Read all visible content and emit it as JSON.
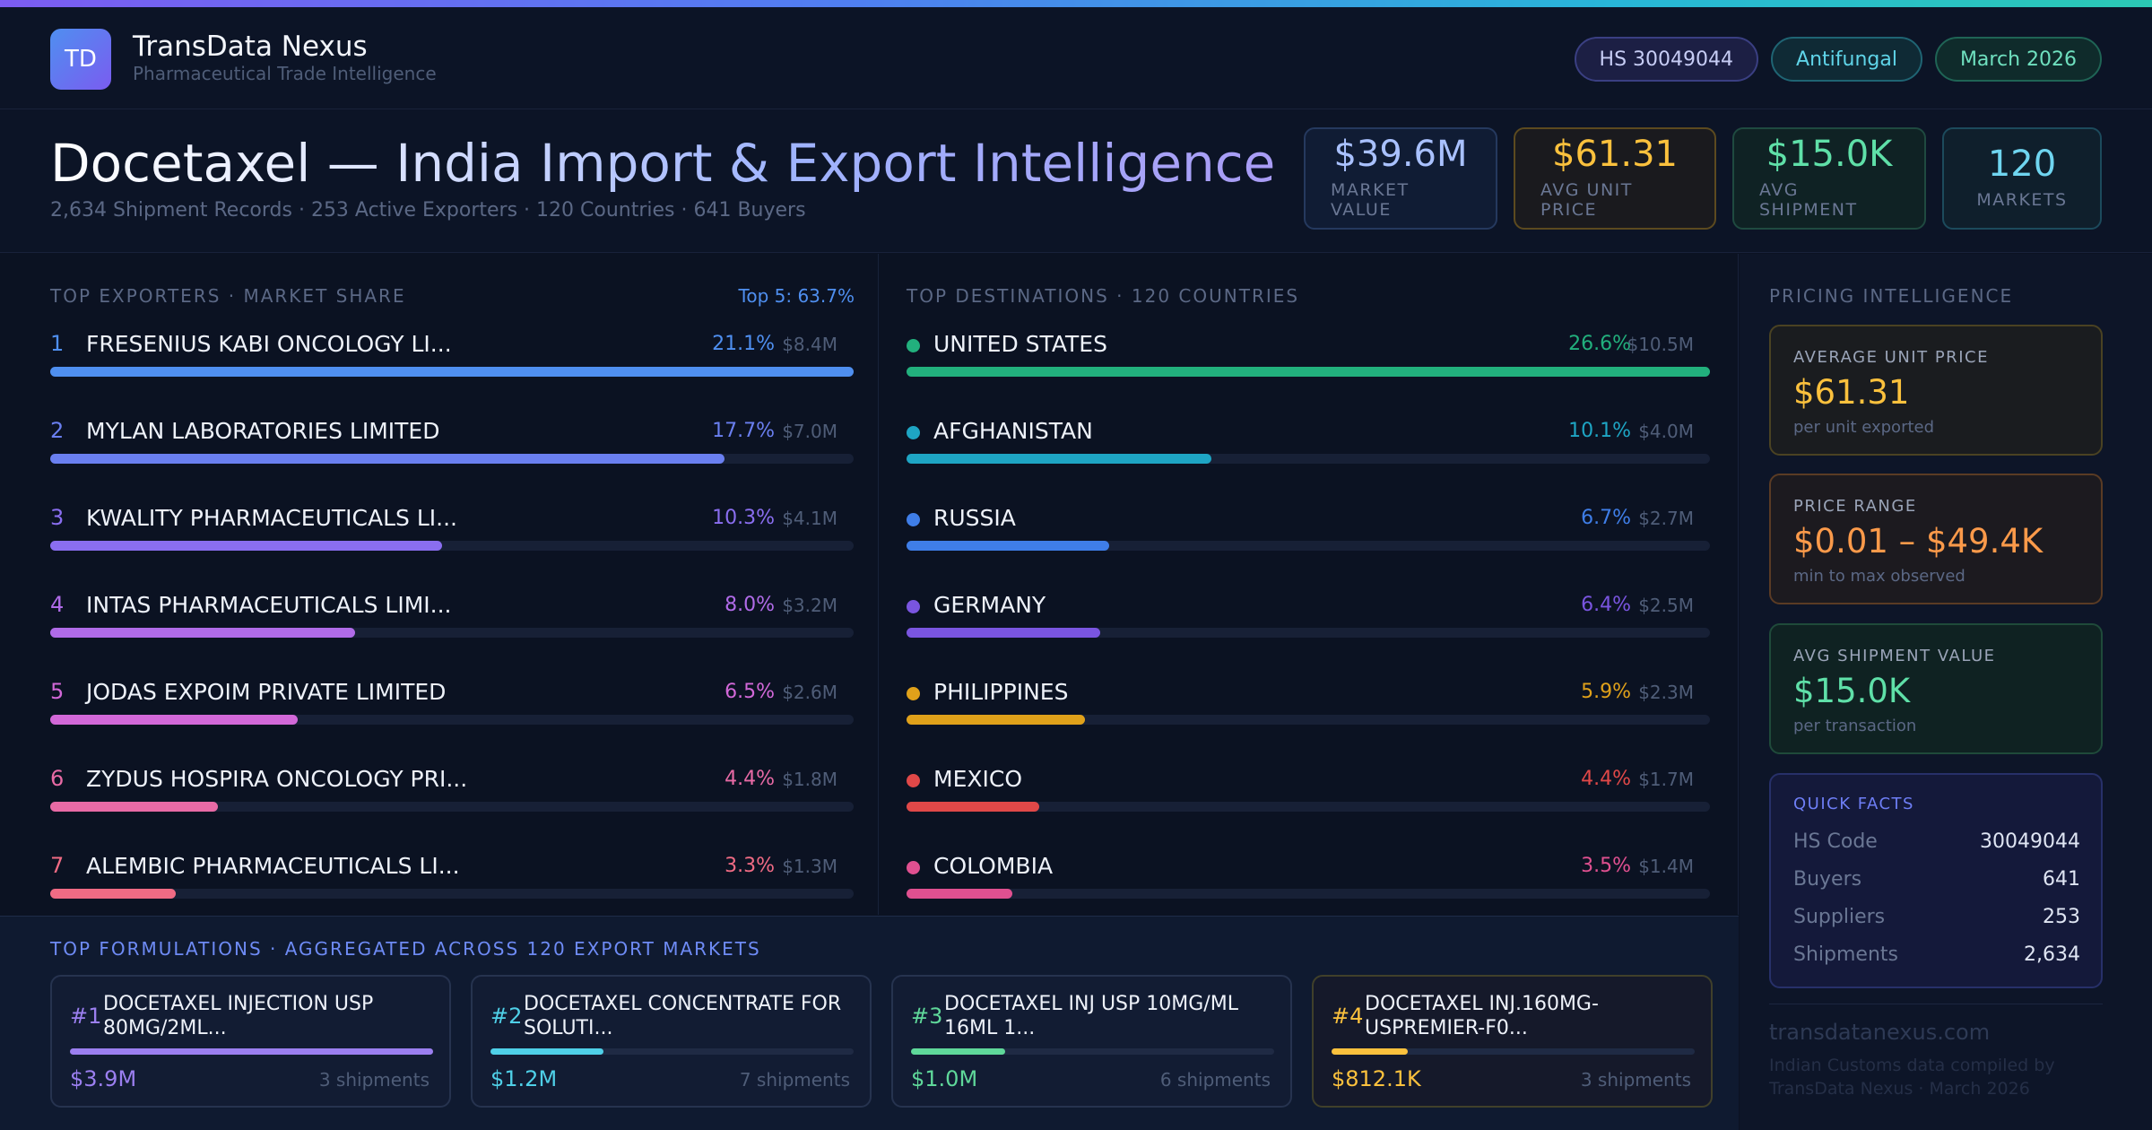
{
  "brand": {
    "logo_text": "TD",
    "name": "TransData Nexus",
    "subtitle": "Pharmaceutical Trade Intelligence"
  },
  "pills": {
    "hs": "HS 30049044",
    "category": "Antifungal",
    "date": "March 2026"
  },
  "title": {
    "main": "Docetaxel — India Import & Export Intelligence",
    "subtitle": "2,634 Shipment Records · 253 Active Exporters · 120 Countries · 641 Buyers"
  },
  "kpis": [
    {
      "value": "$39.6M",
      "label": "MARKET VALUE"
    },
    {
      "value": "$61.31",
      "label": "AVG UNIT PRICE"
    },
    {
      "value": "$15.0K",
      "label": "AVG SHIPMENT"
    },
    {
      "value": "120",
      "label": "MARKETS"
    }
  ],
  "exporters": {
    "label": "TOP EXPORTERS · MARKET SHARE",
    "top5": "Top 5: 63.7%",
    "items": [
      {
        "rank": "1",
        "name": "FRESENIUS KABI ONCOLOGY LI...",
        "pct": "21.1%",
        "amount": "$8.4M",
        "share": 21.1,
        "color": "#4f8ff0"
      },
      {
        "rank": "2",
        "name": "MYLAN LABORATORIES LIMITED",
        "pct": "17.7%",
        "amount": "$7.0M",
        "share": 17.7,
        "color": "#6a7ff0"
      },
      {
        "rank": "3",
        "name": "KWALITY PHARMACEUTICALS LI...",
        "pct": "10.3%",
        "amount": "$4.1M",
        "share": 10.3,
        "color": "#8a6ef0"
      },
      {
        "rank": "4",
        "name": "INTAS PHARMACEUTICALS LIMI...",
        "pct": "8.0%",
        "amount": "$3.2M",
        "share": 8.0,
        "color": "#b06be8"
      },
      {
        "rank": "5",
        "name": "JODAS EXPOIM PRIVATE LIMITED",
        "pct": "6.5%",
        "amount": "$2.6M",
        "share": 6.5,
        "color": "#d268d8"
      },
      {
        "rank": "6",
        "name": "ZYDUS HOSPIRA ONCOLOGY PRI...",
        "pct": "4.4%",
        "amount": "$1.8M",
        "share": 4.4,
        "color": "#e86aa5"
      },
      {
        "rank": "7",
        "name": "ALEMBIC PHARMACEUTICALS LI...",
        "pct": "3.3%",
        "amount": "$1.3M",
        "share": 3.3,
        "color": "#f06b84"
      }
    ]
  },
  "destinations": {
    "label": "TOP DESTINATIONS · 120 COUNTRIES",
    "items": [
      {
        "name": "UNITED STATES",
        "pct": "26.6%",
        "amount": "$10.5M",
        "share": 26.6,
        "color": "#22b07d"
      },
      {
        "name": "AFGHANISTAN",
        "pct": "10.1%",
        "amount": "$4.0M",
        "share": 10.1,
        "color": "#1ea5c4"
      },
      {
        "name": "RUSSIA",
        "pct": "6.7%",
        "amount": "$2.7M",
        "share": 6.7,
        "color": "#3f7ee8"
      },
      {
        "name": "GERMANY",
        "pct": "6.4%",
        "amount": "$2.5M",
        "share": 6.4,
        "color": "#7a55e0"
      },
      {
        "name": "PHILIPPINES",
        "pct": "5.9%",
        "amount": "$2.3M",
        "share": 5.9,
        "color": "#e0a11a"
      },
      {
        "name": "MEXICO",
        "pct": "4.4%",
        "amount": "$1.7M",
        "share": 4.4,
        "color": "#e04848"
      },
      {
        "name": "COLOMBIA",
        "pct": "3.5%",
        "amount": "$1.4M",
        "share": 3.5,
        "color": "#e05090"
      }
    ]
  },
  "formulations": {
    "label": "TOP FORMULATIONS · AGGREGATED ACROSS 120 EXPORT MARKETS",
    "items": [
      {
        "rank": "#1",
        "name": "DOCETAXEL INJECTION USP 80MG/2ML...",
        "value": "$3.9M",
        "shipments": "3 shipments",
        "share": 100,
        "color": "#9b7ff0"
      },
      {
        "rank": "#2",
        "name": "DOCETAXEL CONCENTRATE FOR SOLUTI...",
        "value": "$1.2M",
        "shipments": "7 shipments",
        "share": 31,
        "color": "#4fd0e8"
      },
      {
        "rank": "#3",
        "name": "DOCETAXEL INJ USP 10MG/ML 16ML 1...",
        "value": "$1.0M",
        "shipments": "6 shipments",
        "share": 26,
        "color": "#5fd89a"
      },
      {
        "rank": "#4",
        "name": "DOCETAXEL INJ.160MG-USPREMIER-F0...",
        "value": "$812.1K",
        "shipments": "3 shipments",
        "share": 21,
        "color": "#fbc13d"
      }
    ]
  },
  "pricing": {
    "label": "PRICING INTELLIGENCE",
    "avg_unit": {
      "label": "AVERAGE UNIT PRICE",
      "value": "$61.31",
      "sub": "per unit exported"
    },
    "range": {
      "label": "PRICE RANGE",
      "value": "$0.01 – $49.4K",
      "sub": "min to max observed"
    },
    "avg_shipment": {
      "label": "AVG SHIPMENT VALUE",
      "value": "$15.0K",
      "sub": "per transaction"
    },
    "quick_facts": {
      "title": "QUICK FACTS",
      "rows": [
        {
          "key": "HS Code",
          "value": "30049044"
        },
        {
          "key": "Buyers",
          "value": "641"
        },
        {
          "key": "Suppliers",
          "value": "253"
        },
        {
          "key": "Shipments",
          "value": "2,634"
        }
      ]
    }
  },
  "footer": {
    "site": "transdatanexus.com",
    "note": "Indian Customs data compiled by TransData Nexus · March 2026"
  }
}
